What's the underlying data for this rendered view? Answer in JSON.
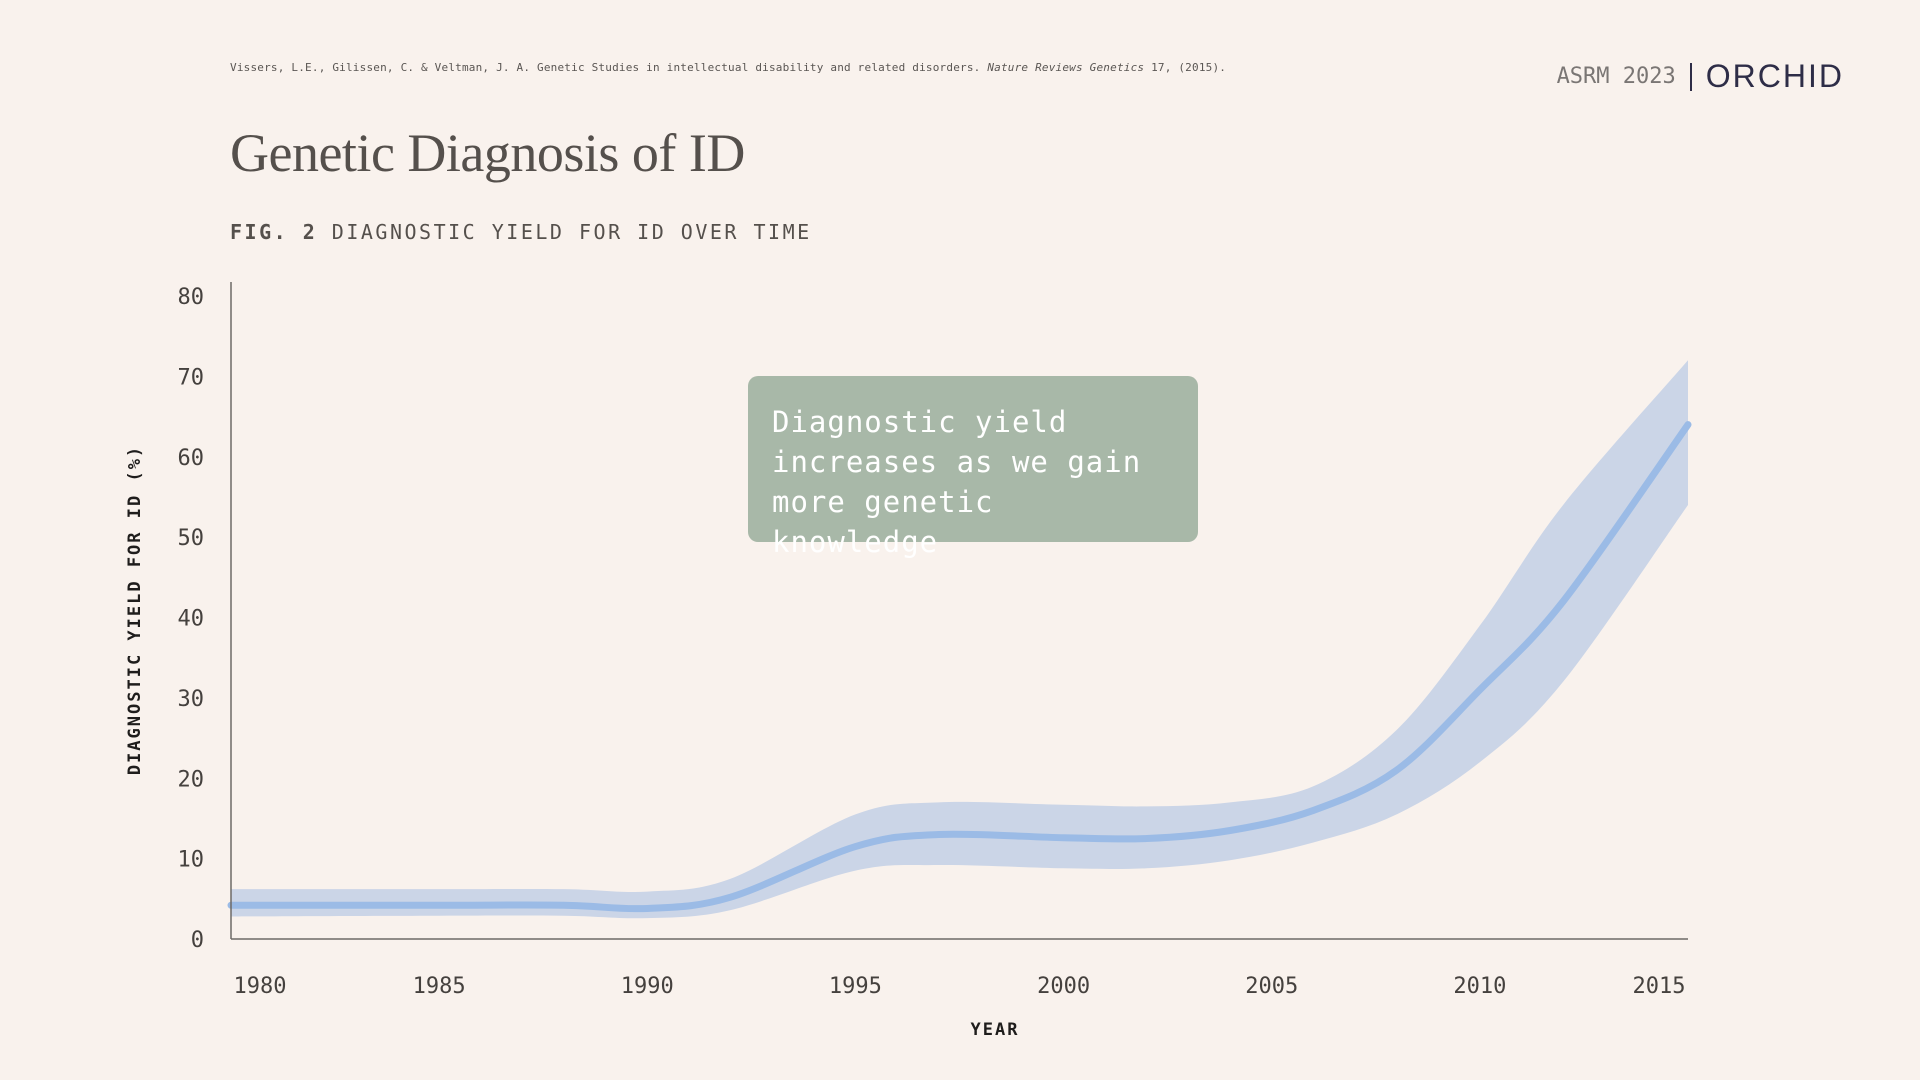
{
  "citation": {
    "authors_text": "Vissers, L.E., Gilissen, C. & Veltman, J. A. Genetic Studies in intellectual disability and related disorders.",
    "journal": "Nature Reviews Genetics",
    "volume_year": "17, (2015)."
  },
  "brand": {
    "conference": "ASRM 2023",
    "logo": "ORCHID"
  },
  "title": "Genetic Diagnosis of ID",
  "figure": {
    "number": "FIG. 2",
    "caption": "DIAGNOSTIC YIELD FOR ID OVER TIME"
  },
  "annotation": {
    "lines": [
      "Diagnostic yield",
      "increases as we gain",
      "more genetic knowledge"
    ]
  },
  "colors": {
    "background": "#f9f2ed",
    "line": "#9bbbe6",
    "band": "#cbd5e7",
    "axis": "#6e6a67",
    "annotation_bg": "#a8b8a8",
    "logo": "#2e2d47"
  },
  "chart_data": {
    "type": "area",
    "xlabel": "YEAR",
    "ylabel": "DIAGNOSTIC YIELD FOR ID (%)",
    "xlim": [
      1980,
      2015
    ],
    "ylim": [
      0,
      80
    ],
    "x_ticks": [
      1980,
      1985,
      1990,
      1995,
      2000,
      2005,
      2010,
      2015
    ],
    "y_ticks": [
      0,
      10,
      20,
      30,
      40,
      50,
      60,
      70,
      80
    ],
    "x_tick_labels": [
      "1980",
      "1985",
      "1990",
      "1995",
      "2000",
      "2005",
      "2010",
      "2015"
    ],
    "y_tick_labels": [
      "0",
      "10",
      "20",
      "30",
      "40",
      "50",
      "60",
      "70",
      "80"
    ],
    "grid": false,
    "series": [
      {
        "x": [
          1980,
          1985,
          1988,
          1990,
          1992,
          1995,
          1997,
          2000,
          2002,
          2004,
          2006,
          2008,
          2010,
          2012,
          2015
        ],
        "y": [
          4.2,
          4.2,
          4.2,
          3.8,
          5.2,
          11.5,
          13.0,
          12.6,
          12.5,
          13.5,
          16.0,
          21.0,
          31.0,
          42.0,
          64.0
        ],
        "lower": [
          2.8,
          2.9,
          2.9,
          2.6,
          3.6,
          8.5,
          9.2,
          8.8,
          8.8,
          9.8,
          12.0,
          15.5,
          22.0,
          32.0,
          54.0
        ],
        "upper": [
          6.2,
          6.2,
          6.2,
          5.9,
          7.5,
          15.5,
          17.0,
          16.7,
          16.5,
          17.0,
          19.0,
          26.0,
          39.0,
          54.0,
          72.0
        ]
      }
    ]
  }
}
